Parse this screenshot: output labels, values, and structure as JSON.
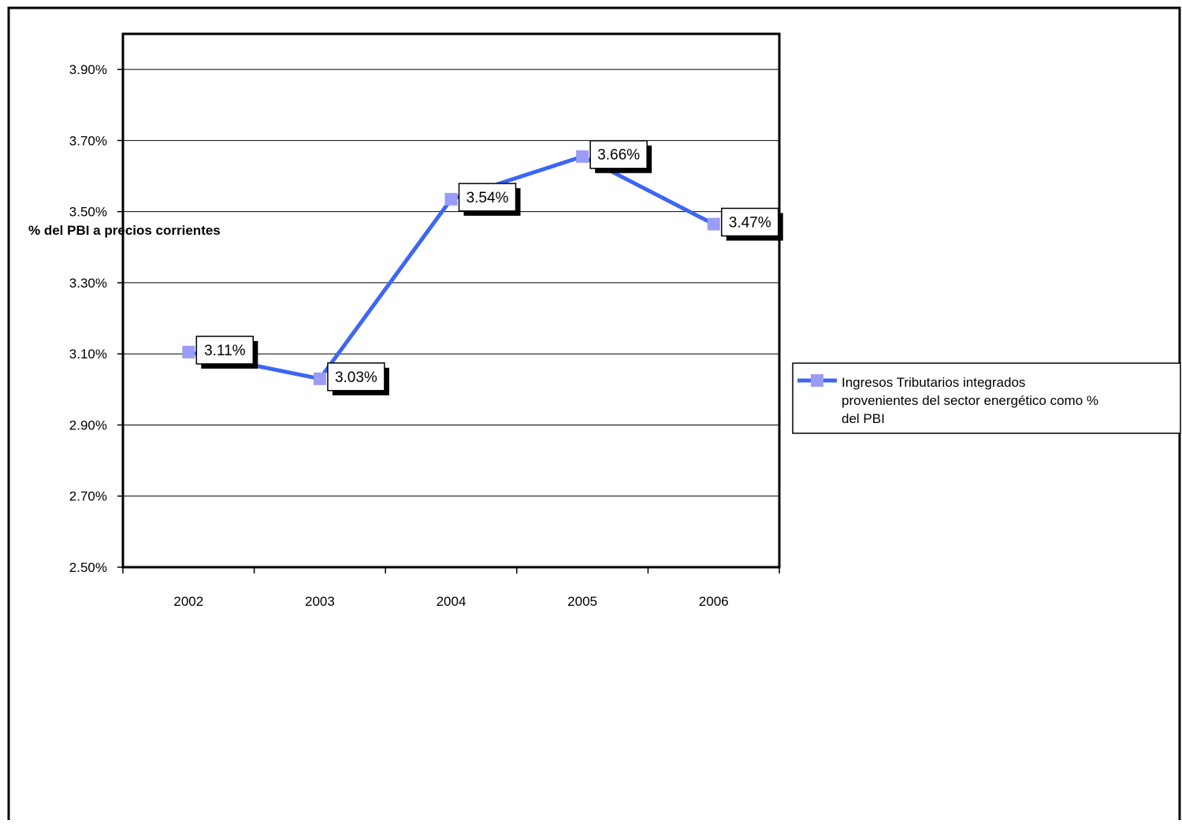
{
  "chart_data": {
    "type": "line",
    "title": "",
    "xlabel": "",
    "ylabel": "% del PBI a precios corrientes",
    "categories": [
      "2002",
      "2003",
      "2004",
      "2005",
      "2006"
    ],
    "ylim": [
      2.5,
      4.0
    ],
    "yticks": [
      2.5,
      2.7,
      2.9,
      3.1,
      3.3,
      3.5,
      3.7,
      3.9
    ],
    "ytick_labels": [
      "2.50%",
      "2.70%",
      "2.90%",
      "3.10%",
      "3.30%",
      "3.50%",
      "3.70%",
      "3.90%"
    ],
    "grid": true,
    "legend_position": "right",
    "series": [
      {
        "name": "Ingresos Tributarios integrados provenientes del sector energético como % del PBI",
        "values": [
          3.105,
          3.03,
          3.535,
          3.655,
          3.465
        ],
        "data_labels": [
          "3.11%",
          "3.03%",
          "3.54%",
          "3.66%",
          "3.47%"
        ],
        "line_color": "#3d66f5",
        "marker_color": "#9a9cf7"
      }
    ],
    "legend_lines": [
      "Ingresos Tributarios integrados",
      "provenientes del sector energético como %",
      "del PBI"
    ]
  }
}
